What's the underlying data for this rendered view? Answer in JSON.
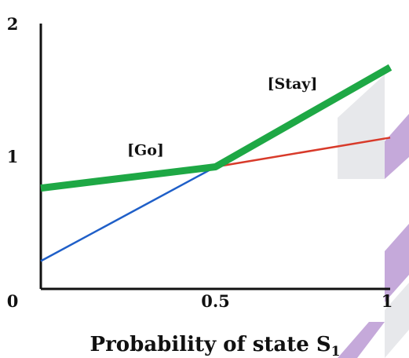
{
  "chart_data": {
    "type": "line",
    "xlabel": "Probability of state S",
    "xlabel_subscript": "1",
    "xlim": [
      0,
      1
    ],
    "ylim": [
      0,
      2
    ],
    "x_ticks": [
      {
        "value": 0,
        "label": "0"
      },
      {
        "value": 0.5,
        "label": "0.5"
      },
      {
        "value": 1,
        "label": "1"
      }
    ],
    "y_ticks": [
      {
        "value": 1,
        "label": "1"
      },
      {
        "value": 2,
        "label": "2"
      }
    ],
    "grid": false,
    "series": [
      {
        "name": "",
        "color": "#1f5fc8",
        "width": 2.5,
        "points": [
          [
            0,
            0.21
          ],
          [
            0.5,
            0.92
          ],
          [
            1,
            1.67
          ]
        ]
      },
      {
        "name": "",
        "color": "#d83a2a",
        "width": 2.5,
        "points": [
          [
            0,
            0.76
          ],
          [
            0.5,
            0.92
          ],
          [
            1,
            1.14
          ]
        ]
      },
      {
        "name": "",
        "color": "#1ea845",
        "width": 9,
        "points": [
          [
            0,
            0.76
          ],
          [
            0.5,
            0.92
          ],
          [
            1,
            1.67
          ]
        ]
      }
    ],
    "annotations": [
      {
        "text": "[Go]",
        "x": 0.3,
        "y": 1.01
      },
      {
        "text": "[Stay]",
        "x": 0.72,
        "y": 1.51
      }
    ]
  },
  "decoration": {
    "stripe_color": "#b18ccd",
    "stripe_shadow_color": "#c9ccd3"
  }
}
